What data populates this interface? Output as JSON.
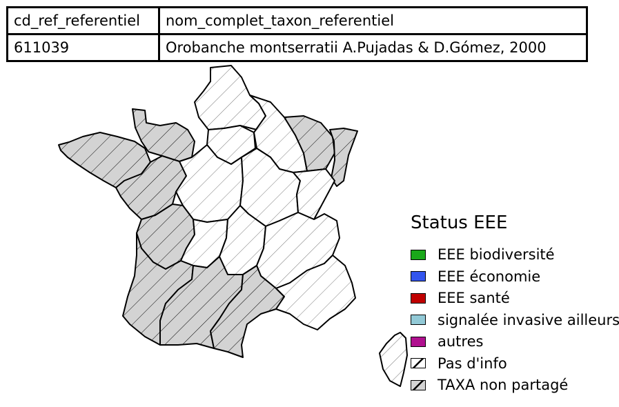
{
  "table": {
    "headers": [
      "cd_ref_referentiel",
      "nom_complet_taxon_referentiel"
    ],
    "row": [
      "611039",
      "Orobanche montserratii A.Pujadas & D.Gómez, 2000"
    ]
  },
  "legend": {
    "title": "Status EEE",
    "items": [
      {
        "label": "EEE biodiversité",
        "color": "#1aa81a",
        "pattern": "solid"
      },
      {
        "label": "EEE économie",
        "color": "#3355ee",
        "pattern": "solid"
      },
      {
        "label": "EEE santé",
        "color": "#c00000",
        "pattern": "solid"
      },
      {
        "label": "signalée invasive ailleurs",
        "color": "#92c9d6",
        "pattern": "solid"
      },
      {
        "label": "autres",
        "color": "#b0108f",
        "pattern": "solid"
      },
      {
        "label": "Pas d'info",
        "color": "#ffffff",
        "pattern": "hatch"
      },
      {
        "label": "TAXA non partagé",
        "color": "#d3d3d3",
        "pattern": "hatch"
      }
    ]
  },
  "map": {
    "regions": [
      {
        "name": "Bretagne",
        "status": "TAXA non partagé"
      },
      {
        "name": "Normandie",
        "status": "TAXA non partagé"
      },
      {
        "name": "Hauts-de-France",
        "status": "Pas d'info"
      },
      {
        "name": "Ile-de-France",
        "status": "Pas d'info"
      },
      {
        "name": "Grand Est",
        "status": "Pas d'info"
      },
      {
        "name": "Lorraine",
        "status": "TAXA non partagé"
      },
      {
        "name": "Alsace",
        "status": "TAXA non partagé"
      },
      {
        "name": "Pays de la Loire",
        "status": "TAXA non partagé"
      },
      {
        "name": "Centre-Val de Loire",
        "status": "Pas d'info"
      },
      {
        "name": "Bourgogne",
        "status": "Pas d'info"
      },
      {
        "name": "Franche-Comté",
        "status": "Pas d'info"
      },
      {
        "name": "Poitou-Charentes",
        "status": "TAXA non partagé"
      },
      {
        "name": "Limousin",
        "status": "Pas d'info"
      },
      {
        "name": "Auvergne",
        "status": "Pas d'info"
      },
      {
        "name": "Rhône-Alpes",
        "status": "Pas d'info"
      },
      {
        "name": "Aquitaine",
        "status": "TAXA non partagé"
      },
      {
        "name": "Midi-Pyrénées",
        "status": "TAXA non partagé"
      },
      {
        "name": "Languedoc-Roussillon",
        "status": "TAXA non partagé"
      },
      {
        "name": "Provence-Alpes-Côte d'Azur",
        "status": "Pas d'info"
      },
      {
        "name": "Corse",
        "status": "Pas d'info"
      }
    ]
  }
}
